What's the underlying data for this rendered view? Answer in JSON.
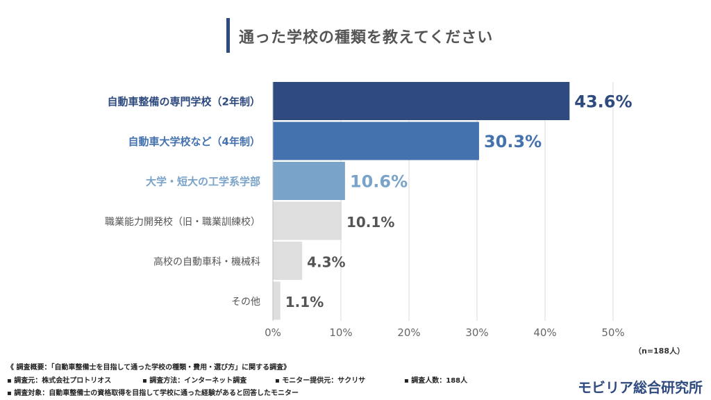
{
  "title": "通った学校の種類を教えてください",
  "chart_data": {
    "type": "bar",
    "orientation": "horizontal",
    "categories": [
      "自動車整備の専門学校（2年制）",
      "自動車大学校など（4年制）",
      "大学・短大の工学系学部",
      "職業能力開発校（旧・職業訓練校）",
      "高校の自動車科・機械科",
      "その他"
    ],
    "values": [
      43.6,
      30.3,
      10.6,
      10.1,
      4.3,
      1.1
    ],
    "value_labels": [
      "43.6%",
      "30.3%",
      "10.6%",
      "10.1%",
      "4.3%",
      "1.1%"
    ],
    "colors": [
      "#2e4a7e",
      "#4472ae",
      "#7aa3c9",
      "#dedede",
      "#dedede",
      "#dedede"
    ],
    "label_colors": [
      "#2e4a7e",
      "#4472ae",
      "#7aa3c9",
      "#555555",
      "#555555",
      "#555555"
    ],
    "xlim": [
      0,
      50
    ],
    "xticks": [
      "0%",
      "10%",
      "20%",
      "30%",
      "40%",
      "50%"
    ],
    "grid": true
  },
  "sample_size": "（n=188人）",
  "notes": {
    "overview": "《 調査概要：「自動車整備士を目指して通った学校の種類・費用・選び方」に関する調査》",
    "source": "▪ 調査元：株式会社プロトリオス",
    "method": "▪ 調査方法：インターネット調査",
    "monitor": "▪ モニター提供元：サクリサ",
    "count": "▪ 調査人数：188人",
    "target": "▪ 調査対象：自動車整備士の資格取得を目指して学校に通った経験があると回答したモニター"
  },
  "logo": "モビリア総合研究所"
}
